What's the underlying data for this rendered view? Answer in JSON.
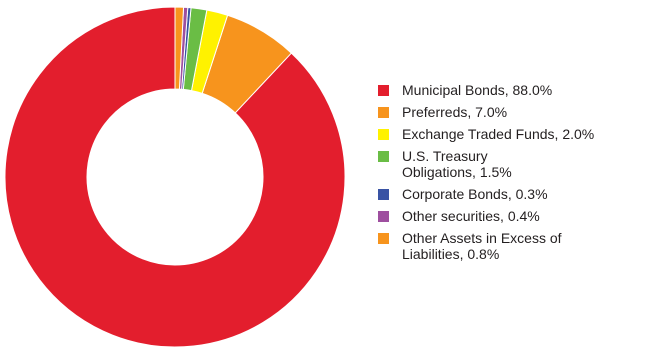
{
  "chart_data": {
    "type": "pie",
    "donut": true,
    "title": "",
    "legend_position": "right",
    "series": [
      {
        "label": "Municipal Bonds, 88.0%",
        "value": 88.0,
        "color": "#e31e2d"
      },
      {
        "label": "Preferreds, 7.0%",
        "value": 7.0,
        "color": "#f7941d"
      },
      {
        "label": "Exchange Traded Funds, 2.0%",
        "value": 2.0,
        "color": "#fff200"
      },
      {
        "label_lines": [
          "U.S. Treasury",
          "Obligations, 1.5%"
        ],
        "value": 1.5,
        "color": "#6abd45"
      },
      {
        "label": "Corporate Bonds, 0.3%",
        "value": 0.3,
        "color": "#3953a4"
      },
      {
        "label": "Other securities, 0.4%",
        "value": 0.4,
        "color": "#9e4f9f"
      },
      {
        "label_lines": [
          "Other Assets in Excess of",
          "Liabilities, 0.8%"
        ],
        "value": 0.8,
        "color": "#f7941d"
      }
    ]
  }
}
